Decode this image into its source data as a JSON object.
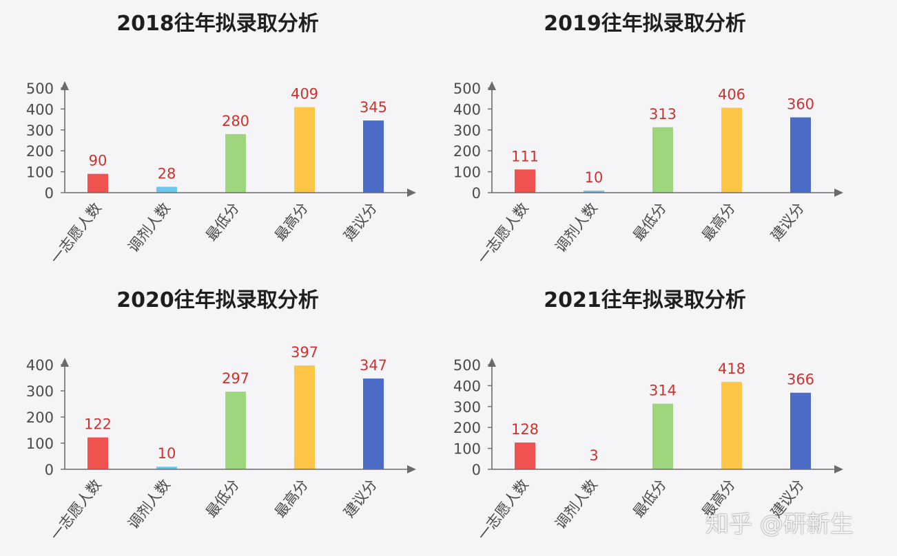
{
  "chart_data": [
    {
      "type": "bar",
      "title": "2018往年拟录取分析",
      "categories": [
        "一志愿人数",
        "调剂人数",
        "最低分",
        "最高分",
        "建议分"
      ],
      "values": [
        90,
        28,
        280,
        409,
        345
      ],
      "yticks": [
        0,
        100,
        200,
        300,
        400,
        500
      ],
      "ylim": [
        0,
        500
      ],
      "colors": [
        "#ef5350",
        "#6ec6ef",
        "#9ed67e",
        "#fdc647",
        "#4a6cc7"
      ],
      "grid": false,
      "legend": "none"
    },
    {
      "type": "bar",
      "title": "2019往年拟录取分析",
      "categories": [
        "一志愿人数",
        "调剂人数",
        "最低分",
        "最高分",
        "建议分"
      ],
      "values": [
        111,
        10,
        313,
        406,
        360
      ],
      "yticks": [
        0,
        100,
        200,
        300,
        400,
        500
      ],
      "ylim": [
        0,
        500
      ],
      "colors": [
        "#ef5350",
        "#6ec6ef",
        "#9ed67e",
        "#fdc647",
        "#4a6cc7"
      ],
      "grid": false,
      "legend": "none"
    },
    {
      "type": "bar",
      "title": "2020往年拟录取分析",
      "categories": [
        "一志愿人数",
        "调剂人数",
        "最低分",
        "最高分",
        "建议分"
      ],
      "values": [
        122,
        10,
        297,
        397,
        347
      ],
      "yticks": [
        0,
        100,
        200,
        300,
        400
      ],
      "ylim": [
        0,
        400
      ],
      "colors": [
        "#ef5350",
        "#6ec6ef",
        "#9ed67e",
        "#fdc647",
        "#4a6cc7"
      ],
      "grid": false,
      "legend": "none"
    },
    {
      "type": "bar",
      "title": "2021往年拟录取分析",
      "categories": [
        "一志愿人数",
        "调剂人数",
        "最低分",
        "最高分",
        "建议分"
      ],
      "values": [
        128,
        3,
        314,
        418,
        366
      ],
      "yticks": [
        0,
        100,
        200,
        300,
        400,
        500
      ],
      "ylim": [
        0,
        500
      ],
      "colors": [
        "#ef5350",
        "#6ec6ef",
        "#9ed67e",
        "#fdc647",
        "#4a6cc7"
      ],
      "grid": false,
      "legend": "none"
    }
  ],
  "watermark": "知乎 @研新生"
}
